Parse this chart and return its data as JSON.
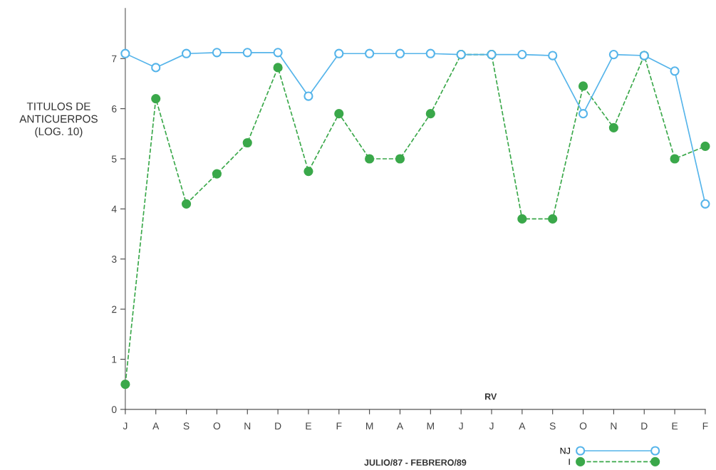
{
  "chart_data": {
    "type": "line",
    "xlabel": "JULIO/87 - FEBRERO/89",
    "ylabel": "TITULOS DE\nANTICUERPOS\n(LOG. 10)",
    "categories": [
      "J",
      "A",
      "S",
      "O",
      "N",
      "D",
      "E",
      "F",
      "M",
      "A",
      "M",
      "J",
      "J",
      "A",
      "S",
      "O",
      "N",
      "D",
      "E",
      "F"
    ],
    "series": [
      {
        "name": "NJ",
        "color": "#55b4ea",
        "marker": "circle",
        "line_style": "solid",
        "values": [
          7.1,
          6.82,
          7.1,
          7.12,
          7.12,
          7.12,
          6.25,
          7.1,
          7.1,
          7.1,
          7.1,
          7.08,
          7.08,
          7.08,
          7.06,
          5.9,
          7.08,
          7.06,
          6.75,
          4.1
        ]
      },
      {
        "name": "I",
        "color": "#3aa84a",
        "marker": "circle",
        "line_style": "dashed",
        "values": [
          0.5,
          6.2,
          4.1,
          4.7,
          5.32,
          6.82,
          4.75,
          5.9,
          5.0,
          5.0,
          5.9,
          7.08,
          7.08,
          3.8,
          3.8,
          6.45,
          5.62,
          7.06,
          5.0,
          5.25
        ]
      }
    ],
    "ylim": [
      0,
      8
    ],
    "yticks": [
      0,
      1,
      2,
      3,
      4,
      5,
      6,
      7
    ],
    "annotations": [
      "RV"
    ],
    "legend": "bottom right",
    "grid": false
  }
}
